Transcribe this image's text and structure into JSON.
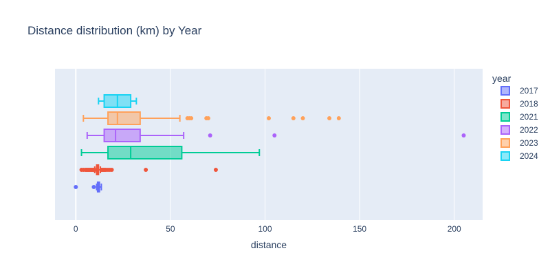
{
  "chart_data": {
    "type": "box",
    "orientation": "horizontal",
    "title": "Distance distribution (km) by Year",
    "xlabel": "distance",
    "ylabel": "",
    "xlim": [
      -11,
      215
    ],
    "xticks": [
      0,
      50,
      100,
      150,
      200
    ],
    "xtick_labels": [
      "0",
      "50",
      "100",
      "150",
      "200"
    ],
    "grid": true,
    "background": "#e5ecf6",
    "legend_title": "year",
    "legend_position": "right",
    "series": [
      {
        "name": "2017",
        "color": "#636efa",
        "min": 11,
        "q1": 11.5,
        "median": 12,
        "q3": 12.5,
        "max": 13.5,
        "outliers": [
          0,
          9.5
        ]
      },
      {
        "name": "2018",
        "color": "#ef553b",
        "min": 10,
        "q1": 11,
        "median": 11.5,
        "q3": 12,
        "max": 13,
        "outliers": [
          3,
          4,
          5,
          5.5,
          6,
          6.5,
          7,
          7.5,
          8,
          8.5,
          9,
          9.5,
          10,
          13.5,
          14,
          14.5,
          15,
          15.5,
          16,
          17,
          18,
          19,
          37,
          74
        ]
      },
      {
        "name": "2021",
        "color": "#00cc96",
        "min": 3,
        "q1": 17,
        "median": 29,
        "q3": 56,
        "max": 97,
        "outliers": []
      },
      {
        "name": "2022",
        "color": "#ab63fa",
        "min": 6,
        "q1": 15,
        "median": 21,
        "q3": 34,
        "max": 57,
        "outliers": [
          71,
          105,
          205
        ]
      },
      {
        "name": "2023",
        "color": "#ffa15a",
        "min": 4,
        "q1": 17,
        "median": 22,
        "q3": 34,
        "max": 55,
        "outliers": [
          59,
          60,
          61,
          69,
          70,
          102,
          115,
          120,
          134,
          139
        ]
      },
      {
        "name": "2024",
        "color": "#19d3f3",
        "min": 12,
        "q1": 15,
        "median": 22,
        "q3": 29,
        "max": 32,
        "outliers": []
      }
    ]
  }
}
